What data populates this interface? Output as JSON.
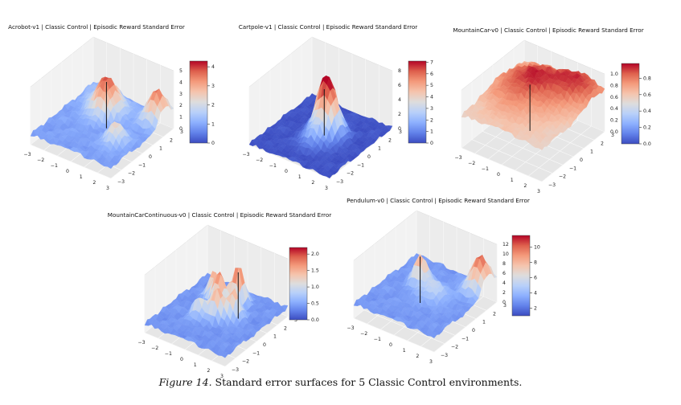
{
  "caption": {
    "label": "Figure 14.",
    "text": "Standard error surfaces for 5 Classic Control environments."
  },
  "colormap": "coolwarm",
  "chart_data": [
    {
      "type": "surface3d",
      "title": "Acrobot-v1 | Classic Control | Episodic Reward Standard Error",
      "x_ticks": [
        "−3",
        "−2",
        "−1",
        "0",
        "1",
        "2",
        "3"
      ],
      "y_ticks": [
        "−3",
        "−2",
        "−1",
        "0",
        "1",
        "2",
        "3"
      ],
      "z_ticks": [
        "0",
        "1",
        "2",
        "3",
        "4",
        "5"
      ],
      "zlim": [
        0,
        5
      ],
      "colorbar_ticks": [
        "0",
        "1",
        "2",
        "3",
        "4"
      ],
      "colorbar_range": [
        0,
        4.3
      ],
      "peaks": [
        {
          "x": -0.6,
          "y": 1.2,
          "height": 4.1,
          "width": 0.7
        },
        {
          "x": 2.4,
          "y": 2.2,
          "height": 3.9,
          "width": 0.6
        },
        {
          "x": 1.6,
          "y": -0.8,
          "height": 2.6,
          "width": 0.5
        },
        {
          "x": -1.8,
          "y": 2.4,
          "height": 1.6,
          "width": 0.8
        }
      ],
      "base": 0.9
    },
    {
      "type": "surface3d",
      "title": "Cartpole-v1 | Classic Control | Episodic Reward Standard Error",
      "x_ticks": [
        "−3",
        "−2",
        "−1",
        "0",
        "1",
        "2",
        "3"
      ],
      "y_ticks": [
        "−3",
        "−2",
        "−1",
        "0",
        "1",
        "2",
        "3"
      ],
      "z_ticks": [
        "0",
        "2",
        "4",
        "6",
        "8"
      ],
      "zlim": [
        0,
        8
      ],
      "colorbar_ticks": [
        "0",
        "1",
        "2",
        "3",
        "4",
        "5",
        "6",
        "7"
      ],
      "colorbar_range": [
        0,
        7.1
      ],
      "peaks": [
        {
          "x": -0.2,
          "y": 0.6,
          "height": 6.5,
          "width": 0.5
        },
        {
          "x": 0.6,
          "y": 0.4,
          "height": 4.8,
          "width": 0.5
        },
        {
          "x": 0.2,
          "y": -0.6,
          "height": 3.0,
          "width": 0.6
        }
      ],
      "base": 0.1
    },
    {
      "type": "surface3d",
      "title": "MountainCar-v0 | Classic Control | Episodic Reward Standard Error",
      "x_ticks": [
        "−3",
        "−2",
        "−1",
        "0",
        "1",
        "2",
        "3"
      ],
      "y_ticks": [
        "−3",
        "−2",
        "−1",
        "0",
        "1",
        "2",
        "3"
      ],
      "z_ticks": [
        "0.0",
        "0.2",
        "0.4",
        "0.6",
        "0.8",
        "1.0"
      ],
      "zlim": [
        0,
        1.0
      ],
      "colorbar_ticks": [
        "0.0",
        "0.2",
        "0.4",
        "0.6",
        "0.8"
      ],
      "colorbar_range": [
        0,
        0.98
      ],
      "peaks": [
        {
          "x": -1.0,
          "y": 1.0,
          "height": 0.95,
          "width": 1.6
        },
        {
          "x": 1.8,
          "y": 2.2,
          "height": 0.9,
          "width": 1.2
        },
        {
          "x": 0.0,
          "y": -1.5,
          "height": 0.6,
          "width": 1.6
        }
      ],
      "base": 0.55
    },
    {
      "type": "surface3d",
      "title": "MountainCarContinuous-v0 | Classic Control | Episodic Reward Standard Error",
      "x_ticks": [
        "−3",
        "−2",
        "−1",
        "0",
        "1",
        "2",
        "3"
      ],
      "y_ticks": [
        "−3",
        "−2",
        "−1",
        "0",
        "1",
        "2",
        "3"
      ],
      "z_ticks": [
        "0.0",
        "0.5",
        "1.0",
        "1.5",
        "2.0",
        "2.5"
      ],
      "zlim": [
        0,
        2.5
      ],
      "colorbar_ticks": [
        "0.0",
        "0.5",
        "1.0",
        "1.5",
        "2.0"
      ],
      "colorbar_range": [
        0,
        2.2
      ],
      "peaks": [
        {
          "x": 0.4,
          "y": 1.6,
          "height": 2.3,
          "width": 0.35
        },
        {
          "x": -0.4,
          "y": 0.8,
          "height": 2.0,
          "width": 0.35
        },
        {
          "x": 0.2,
          "y": -0.2,
          "height": 1.9,
          "width": 0.35
        },
        {
          "x": -1.2,
          "y": 1.2,
          "height": 1.6,
          "width": 0.35
        },
        {
          "x": 1.0,
          "y": 0.4,
          "height": 1.7,
          "width": 0.35
        },
        {
          "x": -0.8,
          "y": -0.6,
          "height": 1.3,
          "width": 0.35
        }
      ],
      "base": 0.4
    },
    {
      "type": "surface3d",
      "title": "Pendulum-v0 | Classic Control | Episodic Reward Standard Error",
      "x_ticks": [
        "−3",
        "−2",
        "−1",
        "0",
        "1",
        "2",
        "3"
      ],
      "y_ticks": [
        "−3",
        "−2",
        "−1",
        "0",
        "1",
        "2",
        "3"
      ],
      "z_ticks": [
        "0",
        "2",
        "4",
        "6",
        "8",
        "10",
        "12"
      ],
      "zlim": [
        0,
        12
      ],
      "colorbar_ticks": [
        "2",
        "4",
        "6",
        "8",
        "10"
      ],
      "colorbar_range": [
        1,
        11.5
      ],
      "peaks": [
        {
          "x": -1.0,
          "y": 0.8,
          "height": 9.5,
          "width": 0.4
        },
        {
          "x": 2.4,
          "y": 2.2,
          "height": 11.0,
          "width": 0.6
        },
        {
          "x": 0.4,
          "y": 0.2,
          "height": 6.0,
          "width": 0.6
        }
      ],
      "base": 3.0
    }
  ]
}
